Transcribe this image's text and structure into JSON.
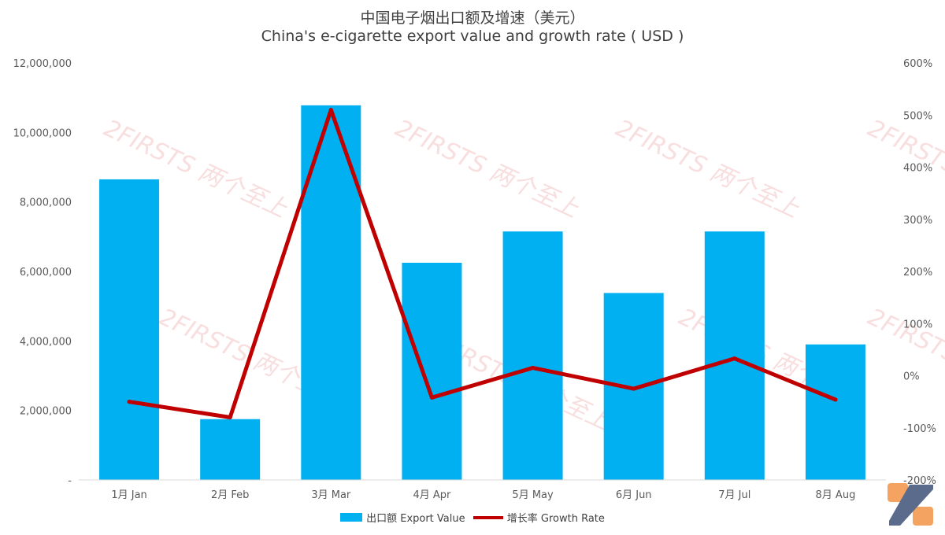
{
  "chart_data": {
    "type": "bar",
    "title": "中国电子烟出口额及增速（美元）",
    "subtitle": "China's e-cigarette export value and growth rate ( USD )",
    "categories": [
      "1月 Jan",
      "2月 Feb",
      "3月 Mar",
      "4月 Apr",
      "5月 May",
      "6月 Jun",
      "7月 Jul",
      "8月 Aug"
    ],
    "series": [
      {
        "name": "出口额 Export Value",
        "type": "bar",
        "axis": "left",
        "color": "#00b0f0",
        "values": [
          8650000,
          1750000,
          10780000,
          6250000,
          7150000,
          5380000,
          7150000,
          3900000
        ]
      },
      {
        "name": "增长率 Growth Rate",
        "type": "line",
        "axis": "right",
        "color": "#c00000",
        "values": [
          -0.5,
          -0.8,
          5.1,
          -0.42,
          0.15,
          -0.25,
          0.33,
          -0.46
        ]
      }
    ],
    "y_left": {
      "min": 0,
      "max": 12000000,
      "ticks": [
        "-",
        "2,000,000",
        "4,000,000",
        "6,000,000",
        "8,000,000",
        "10,000,000",
        "12,000,000"
      ]
    },
    "y_right": {
      "min": -2,
      "max": 6,
      "ticks": [
        "-200%",
        "-100%",
        "0%",
        "100%",
        "200%",
        "300%",
        "400%",
        "500%",
        "600%"
      ]
    },
    "grid": false,
    "legend_position": "bottom",
    "watermark": "2FIRSTS 两个至上"
  }
}
